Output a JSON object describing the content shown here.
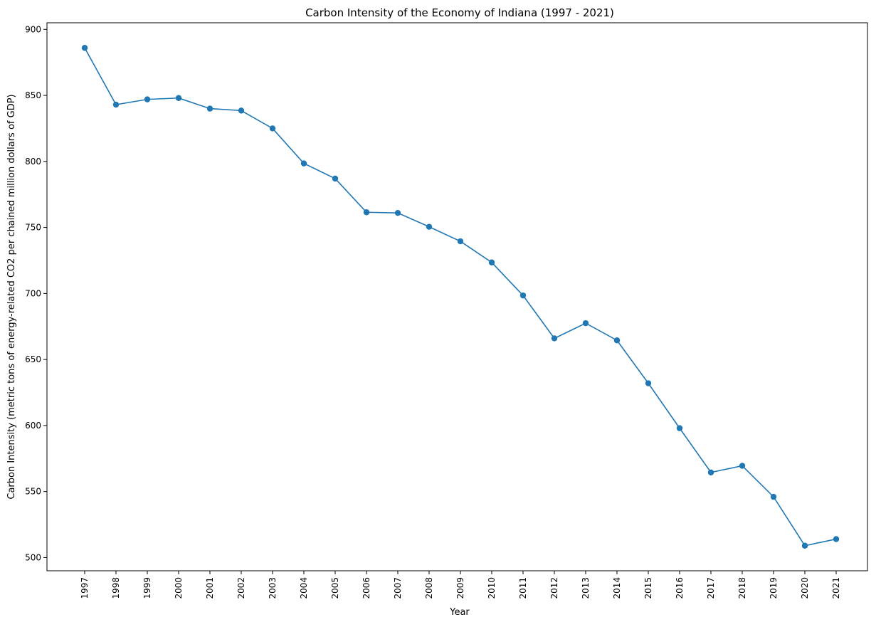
{
  "chart_data": {
    "type": "line",
    "title": "Carbon Intensity of the Economy of Indiana (1997 - 2021)",
    "xlabel": "Year",
    "ylabel": "Carbon Intensity (metric tons of energy-related CO2 per chained million dollars of GDP)",
    "categories": [
      "1997",
      "1998",
      "1999",
      "2000",
      "2001",
      "2002",
      "2003",
      "2004",
      "2005",
      "2006",
      "2007",
      "2008",
      "2009",
      "2010",
      "2011",
      "2012",
      "2013",
      "2014",
      "2015",
      "2016",
      "2017",
      "2018",
      "2019",
      "2020",
      "2021"
    ],
    "series": [
      {
        "values": [
          886,
          843,
          847,
          848,
          840,
          838.5,
          825,
          798.5,
          787,
          761.5,
          761,
          750.5,
          739.5,
          723.5,
          698.5,
          666,
          677.5,
          664.5,
          632,
          598,
          564.5,
          569.5,
          546,
          509,
          514
        ],
        "color": "#1f77b4",
        "marker": "circle"
      }
    ],
    "ylim": [
      490,
      905
    ],
    "yticks": [
      500,
      550,
      600,
      650,
      700,
      750,
      800,
      850,
      900
    ],
    "grid": false,
    "legend": "none",
    "x_tick_rotation": "vertical"
  }
}
